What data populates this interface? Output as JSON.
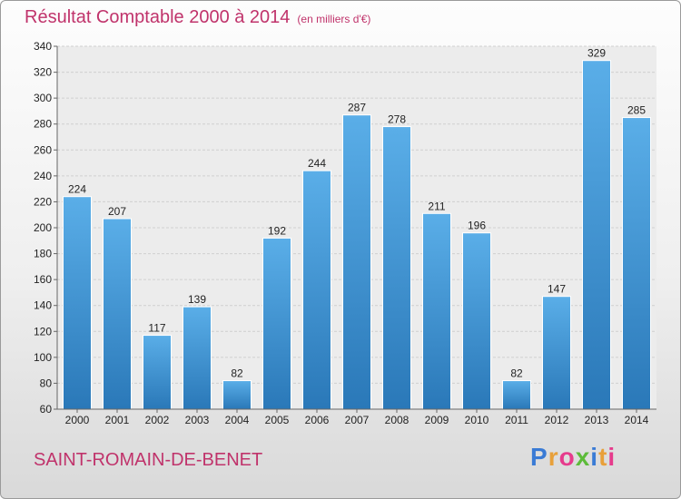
{
  "header": {
    "title": "Résultat Comptable 2000 à 2014",
    "subtitle": "(en milliers d'€)"
  },
  "footer": {
    "town": "SAINT-ROMAIN-DE-BENET",
    "logo": "Proxiti",
    "logo_colors": [
      "#3a7bd5",
      "#e8a03a",
      "#e63b8c",
      "#5dbb3a",
      "#3a7bd5",
      "#e8a03a",
      "#e63b8c"
    ]
  },
  "chart_data": {
    "type": "bar",
    "title": "Résultat Comptable 2000 à 2014",
    "xlabel": "",
    "ylabel": "",
    "categories": [
      "2000",
      "2001",
      "2002",
      "2003",
      "2004",
      "2005",
      "2006",
      "2007",
      "2008",
      "2009",
      "2010",
      "2011",
      "2012",
      "2013",
      "2014"
    ],
    "values": [
      224,
      207,
      117,
      139,
      82,
      192,
      244,
      287,
      278,
      211,
      196,
      82,
      147,
      329,
      285
    ],
    "ylim": [
      60,
      340
    ],
    "yticks": [
      60,
      80,
      100,
      120,
      140,
      160,
      180,
      200,
      220,
      240,
      260,
      280,
      300,
      320,
      340
    ],
    "grid": true,
    "bar_color_top": "#5aaee8",
    "bar_color_bottom": "#2a78b8"
  }
}
